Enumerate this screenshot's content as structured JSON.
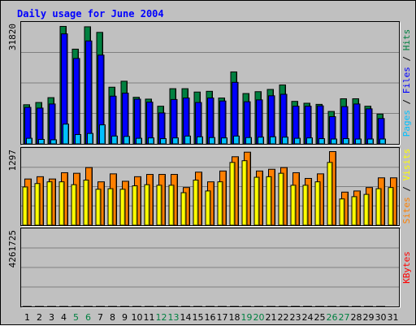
{
  "title": "Daily usage for June 2004",
  "colors": {
    "background": "#c0c0c0",
    "title": "#0000ff",
    "hits": "#008040",
    "files": "#0000ff",
    "pages": "#00c0ff",
    "visits": "#ffff00",
    "sites": "#ff8000",
    "kbytes": "#ff0000",
    "weekend_day_label": "#008040",
    "weekday_label": "#000000"
  },
  "chart_data": [
    {
      "type": "bar",
      "panel": "top",
      "ymax_label": "31820",
      "ylim": [
        0,
        31820
      ],
      "grid": true,
      "legend": {
        "placement": "right-vertical",
        "items": [
          {
            "text": "Pages",
            "color": "#00c0ff"
          },
          {
            "text": " / ",
            "color": "#000000"
          },
          {
            "text": "Files",
            "color": "#0000ff"
          },
          {
            "text": " / ",
            "color": "#000000"
          },
          {
            "text": "Hits",
            "color": "#008040"
          }
        ]
      },
      "categories": [
        "1",
        "2",
        "3",
        "4",
        "5",
        "6",
        "7",
        "8",
        "9",
        "10",
        "11",
        "12",
        "13",
        "14",
        "15",
        "16",
        "17",
        "18",
        "19",
        "20",
        "21",
        "22",
        "23",
        "24",
        "25",
        "26",
        "27",
        "28",
        "29",
        "30",
        "31"
      ],
      "series": [
        {
          "name": "Hits",
          "color": "#008040",
          "values": [
            10500,
            11100,
            12400,
            31500,
            25400,
            31400,
            29900,
            15200,
            16800,
            12500,
            12000,
            10100,
            14800,
            14800,
            13900,
            14100,
            12300,
            19300,
            13500,
            14000,
            14600,
            15800,
            11400,
            10900,
            10600,
            8700,
            12100,
            12100,
            10100,
            8000,
            0
          ]
        },
        {
          "name": "Files",
          "color": "#0000ff",
          "values": [
            9800,
            9600,
            10700,
            29500,
            22900,
            27600,
            23800,
            12800,
            13600,
            12000,
            11200,
            8300,
            11900,
            12300,
            11100,
            12300,
            11500,
            16500,
            11300,
            11800,
            12900,
            13300,
            10100,
            10100,
            10200,
            7300,
            10000,
            10700,
            9400,
            6800,
            0
          ]
        },
        {
          "name": "Pages",
          "color": "#00c0ff",
          "values": [
            1500,
            1200,
            1100,
            5300,
            2500,
            2800,
            5100,
            2100,
            2000,
            1500,
            1600,
            1400,
            1600,
            2100,
            1900,
            1700,
            1600,
            2100,
            1700,
            1800,
            1900,
            1800,
            1500,
            1600,
            1400,
            1300,
            1400,
            1300,
            1300,
            1300,
            0
          ]
        }
      ]
    },
    {
      "type": "bar",
      "panel": "middle",
      "ymax_label": "1297",
      "ylim": [
        0,
        1297
      ],
      "grid": true,
      "legend": {
        "placement": "right-vertical",
        "items": [
          {
            "text": "Sites",
            "color": "#ff8000"
          },
          {
            "text": " / ",
            "color": "#000000"
          },
          {
            "text": "Visits",
            "color": "#ffff00"
          }
        ]
      },
      "categories": [
        "1",
        "2",
        "3",
        "4",
        "5",
        "6",
        "7",
        "8",
        "9",
        "10",
        "11",
        "12",
        "13",
        "14",
        "15",
        "16",
        "17",
        "18",
        "19",
        "20",
        "21",
        "22",
        "23",
        "24",
        "25",
        "26",
        "27",
        "28",
        "29",
        "30",
        "31"
      ],
      "series": [
        {
          "name": "Sites",
          "color": "#ff8000",
          "values": [
            810,
            850,
            810,
            920,
            910,
            1010,
            760,
            900,
            770,
            850,
            890,
            890,
            890,
            660,
            930,
            760,
            950,
            1200,
            1280,
            950,
            980,
            1010,
            920,
            820,
            900,
            1290,
            580,
            600,
            660,
            830,
            830
          ]
        },
        {
          "name": "Visits",
          "color": "#ffff00",
          "values": [
            670,
            730,
            760,
            760,
            710,
            790,
            630,
            640,
            630,
            690,
            710,
            700,
            700,
            570,
            790,
            600,
            760,
            1100,
            1130,
            840,
            850,
            910,
            700,
            700,
            760,
            1100,
            460,
            500,
            540,
            640,
            660
          ]
        }
      ]
    },
    {
      "type": "bar",
      "panel": "bottom",
      "ymax_label": "4261725",
      "ylim": [
        0,
        4261725
      ],
      "grid": true,
      "legend": {
        "placement": "right-vertical",
        "items": [
          {
            "text": "KBytes",
            "color": "#ff0000"
          }
        ]
      },
      "categories": [
        "1",
        "2",
        "3",
        "4",
        "5",
        "6",
        "7",
        "8",
        "9",
        "10",
        "11",
        "12",
        "13",
        "14",
        "15",
        "16",
        "17",
        "18",
        "19",
        "20",
        "21",
        "22",
        "23",
        "24",
        "25",
        "26",
        "27",
        "28",
        "29",
        "30",
        "31"
      ],
      "series": [
        {
          "name": "KBytes",
          "color": "#ff0000",
          "values": [
            800,
            1480,
            580,
            1020,
            840,
            980,
            1480,
            680,
            680,
            780,
            680,
            1020,
            540,
            630,
            780,
            1760,
            1150,
            1160,
            600,
            880,
            770,
            630,
            3570,
            4260,
            1150,
            600,
            1480,
            1150,
            1000,
            600,
            0
          ]
        }
      ]
    }
  ],
  "x_axis": {
    "labels": [
      {
        "text": "1",
        "weekend": false
      },
      {
        "text": "2",
        "weekend": false
      },
      {
        "text": "3",
        "weekend": false
      },
      {
        "text": "4",
        "weekend": false
      },
      {
        "text": "5",
        "weekend": true
      },
      {
        "text": "6",
        "weekend": true
      },
      {
        "text": "7",
        "weekend": false
      },
      {
        "text": "8",
        "weekend": false
      },
      {
        "text": "9",
        "weekend": false
      },
      {
        "text": "10",
        "weekend": false
      },
      {
        "text": "11",
        "weekend": false
      },
      {
        "text": "12",
        "weekend": true
      },
      {
        "text": "13",
        "weekend": true
      },
      {
        "text": "14",
        "weekend": false
      },
      {
        "text": "15",
        "weekend": false
      },
      {
        "text": "16",
        "weekend": false
      },
      {
        "text": "17",
        "weekend": false
      },
      {
        "text": "18",
        "weekend": false
      },
      {
        "text": "19",
        "weekend": true
      },
      {
        "text": "20",
        "weekend": true
      },
      {
        "text": "21",
        "weekend": false
      },
      {
        "text": "22",
        "weekend": false
      },
      {
        "text": "23",
        "weekend": false
      },
      {
        "text": "24",
        "weekend": false
      },
      {
        "text": "25",
        "weekend": false
      },
      {
        "text": "26",
        "weekend": true
      },
      {
        "text": "27",
        "weekend": true
      },
      {
        "text": "28",
        "weekend": false
      },
      {
        "text": "29",
        "weekend": false
      },
      {
        "text": "30",
        "weekend": false
      },
      {
        "text": "31",
        "weekend": false
      }
    ]
  }
}
